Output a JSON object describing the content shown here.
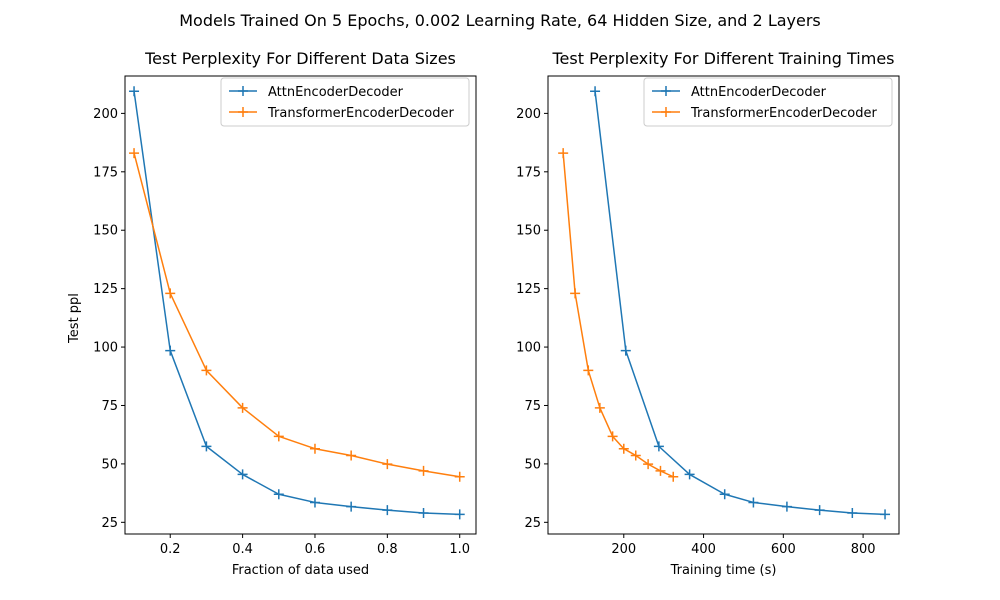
{
  "figure": {
    "suptitle": "Models Trained On 5 Epochs, 0.002 Learning Rate, 64 Hidden Size, and 2 Layers"
  },
  "colors": {
    "attn": "#1f77b4",
    "transformer": "#ff7f0e",
    "legend_border": "#cccccc"
  },
  "chart_data": [
    {
      "type": "line",
      "title": "Test Perplexity For Different Data Sizes",
      "xlabel": "Fraction of data used",
      "ylabel": "Test ppl",
      "xlim": [
        0.075,
        1.045
      ],
      "ylim": [
        20,
        216
      ],
      "xticks": [
        0.2,
        0.4,
        0.6,
        0.8,
        1.0
      ],
      "xtick_labels": [
        "0.2",
        "0.4",
        "0.6",
        "0.8",
        "1.0"
      ],
      "yticks": [
        25,
        50,
        75,
        100,
        125,
        150,
        175,
        200
      ],
      "ytick_labels": [
        "25",
        "50",
        "75",
        "100",
        "125",
        "150",
        "175",
        "200"
      ],
      "legend": "upper right",
      "grid": false,
      "marker": "+",
      "series": [
        {
          "name": "AttnEncoderDecoder",
          "color": "#1f77b4",
          "x": [
            0.1,
            0.2,
            0.3,
            0.4,
            0.5,
            0.6,
            0.7,
            0.8,
            0.9,
            1.0
          ],
          "y": [
            209.5,
            98.5,
            57.5,
            45.5,
            37.0,
            33.5,
            31.7,
            30.2,
            29.0,
            28.4
          ]
        },
        {
          "name": "TransformerEncoderDecoder",
          "color": "#ff7f0e",
          "x": [
            0.1,
            0.2,
            0.3,
            0.4,
            0.5,
            0.6,
            0.7,
            0.8,
            0.9,
            1.0
          ],
          "y": [
            183.0,
            123.0,
            90.0,
            74.0,
            61.8,
            56.5,
            53.6,
            49.9,
            47.0,
            44.5
          ]
        }
      ]
    },
    {
      "type": "line",
      "title": "Test Perplexity For Different Training Times",
      "xlabel": "Training time (s)",
      "ylabel": "",
      "xlim": [
        10,
        890
      ],
      "ylim": [
        20,
        216
      ],
      "xticks": [
        200,
        400,
        600,
        800
      ],
      "xtick_labels": [
        "200",
        "400",
        "600",
        "800"
      ],
      "yticks": [
        25,
        50,
        75,
        100,
        125,
        150,
        175,
        200
      ],
      "ytick_labels": [
        "25",
        "50",
        "75",
        "100",
        "125",
        "150",
        "175",
        "200"
      ],
      "legend": "upper right",
      "grid": false,
      "marker": "+",
      "series": [
        {
          "name": "AttnEncoderDecoder",
          "color": "#1f77b4",
          "x": [
            128,
            205,
            288,
            365,
            453,
            525,
            609,
            691,
            773,
            855
          ],
          "y": [
            209.5,
            98.5,
            57.5,
            45.5,
            37.0,
            33.5,
            31.7,
            30.2,
            29.0,
            28.4
          ]
        },
        {
          "name": "TransformerEncoderDecoder",
          "color": "#ff7f0e",
          "x": [
            48,
            78,
            111,
            140,
            172,
            200,
            230,
            261,
            292,
            324
          ],
          "y": [
            183.0,
            123.0,
            90.0,
            74.0,
            61.8,
            56.5,
            53.6,
            49.9,
            47.0,
            44.5
          ]
        }
      ]
    }
  ]
}
